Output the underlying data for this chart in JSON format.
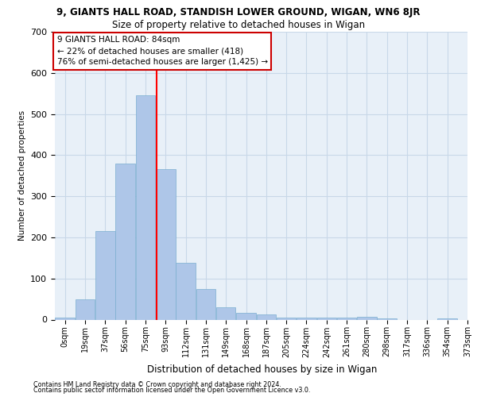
{
  "title_line1": "9, GIANTS HALL ROAD, STANDISH LOWER GROUND, WIGAN, WN6 8JR",
  "title_line2": "Size of property relative to detached houses in Wigan",
  "xlabel": "Distribution of detached houses by size in Wigan",
  "ylabel": "Number of detached properties",
  "footnote1": "Contains HM Land Registry data © Crown copyright and database right 2024.",
  "footnote2": "Contains public sector information licensed under the Open Government Licence v3.0.",
  "bin_labels": [
    "0sqm",
    "19sqm",
    "37sqm",
    "56sqm",
    "75sqm",
    "93sqm",
    "112sqm",
    "131sqm",
    "149sqm",
    "168sqm",
    "187sqm",
    "205sqm",
    "224sqm",
    "242sqm",
    "261sqm",
    "280sqm",
    "298sqm",
    "317sqm",
    "336sqm",
    "354sqm",
    "373sqm"
  ],
  "bar_values": [
    5,
    50,
    215,
    380,
    545,
    365,
    138,
    75,
    30,
    17,
    12,
    5,
    5,
    5,
    5,
    7,
    3,
    0,
    0,
    3
  ],
  "bar_color": "#aec6e8",
  "bar_edge_color": "#7aaed0",
  "red_line_bar_index": 4.54,
  "ylim": [
    0,
    700
  ],
  "yticks": [
    0,
    100,
    200,
    300,
    400,
    500,
    600,
    700
  ],
  "annotation_text": "9 GIANTS HALL ROAD: 84sqm\n← 22% of detached houses are smaller (418)\n76% of semi-detached houses are larger (1,425) →",
  "annotation_box_color": "#ffffff",
  "annotation_box_edge": "#cc0000",
  "grid_color": "#c8d8e8",
  "bg_color": "#e8f0f8",
  "title1_fontsize": 8.5,
  "title2_fontsize": 8.5,
  "ylabel_fontsize": 7.5,
  "xlabel_fontsize": 8.5,
  "tick_fontsize": 7,
  "annotation_fontsize": 7.5,
  "footnote_fontsize": 5.8
}
